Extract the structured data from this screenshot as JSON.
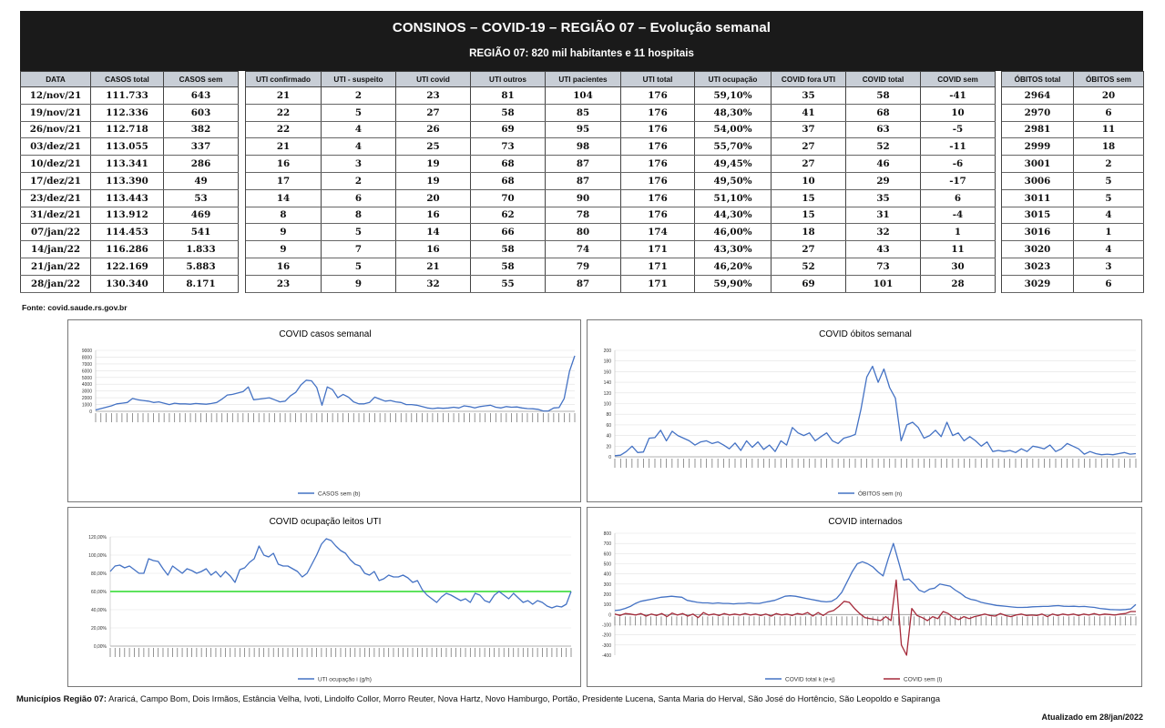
{
  "header": {
    "title": "CONSINOS – COVID-19 – REGIÃO 07 – Evolução semanal",
    "subtitle": "REGIÃO 07: 820 mil habitantes e 11 hospitais"
  },
  "table": {
    "columns": [
      "DATA",
      "CASOS total",
      "CASOS sem",
      "UTI confirmado",
      "UTI - suspeito",
      "UTI covid",
      "UTI outros",
      "UTI pacientes",
      "UTI total",
      "UTI ocupação",
      "COVID fora UTI",
      "COVID total",
      "COVID sem",
      "ÓBITOS total",
      "ÓBITOS sem"
    ],
    "rows": [
      [
        "12/nov/21",
        "111.733",
        "643",
        "21",
        "2",
        "23",
        "81",
        "104",
        "176",
        "59,10%",
        "35",
        "58",
        "-41",
        "2964",
        "20"
      ],
      [
        "19/nov/21",
        "112.336",
        "603",
        "22",
        "5",
        "27",
        "58",
        "85",
        "176",
        "48,30%",
        "41",
        "68",
        "10",
        "2970",
        "6"
      ],
      [
        "26/nov/21",
        "112.718",
        "382",
        "22",
        "4",
        "26",
        "69",
        "95",
        "176",
        "54,00%",
        "37",
        "63",
        "-5",
        "2981",
        "11"
      ],
      [
        "03/dez/21",
        "113.055",
        "337",
        "21",
        "4",
        "25",
        "73",
        "98",
        "176",
        "55,70%",
        "27",
        "52",
        "-11",
        "2999",
        "18"
      ],
      [
        "10/dez/21",
        "113.341",
        "286",
        "16",
        "3",
        "19",
        "68",
        "87",
        "176",
        "49,45%",
        "27",
        "46",
        "-6",
        "3001",
        "2"
      ],
      [
        "17/dez/21",
        "113.390",
        "49",
        "17",
        "2",
        "19",
        "68",
        "87",
        "176",
        "49,50%",
        "10",
        "29",
        "-17",
        "3006",
        "5"
      ],
      [
        "23/dez/21",
        "113.443",
        "53",
        "14",
        "6",
        "20",
        "70",
        "90",
        "176",
        "51,10%",
        "15",
        "35",
        "6",
        "3011",
        "5"
      ],
      [
        "31/dez/21",
        "113.912",
        "469",
        "8",
        "8",
        "16",
        "62",
        "78",
        "176",
        "44,30%",
        "15",
        "31",
        "-4",
        "3015",
        "4"
      ],
      [
        "07/jan/22",
        "114.453",
        "541",
        "9",
        "5",
        "14",
        "66",
        "80",
        "174",
        "46,00%",
        "18",
        "32",
        "1",
        "3016",
        "1"
      ],
      [
        "14/jan/22",
        "116.286",
        "1.833",
        "9",
        "7",
        "16",
        "58",
        "74",
        "171",
        "43,30%",
        "27",
        "43",
        "11",
        "3020",
        "4"
      ],
      [
        "21/jan/22",
        "122.169",
        "5.883",
        "16",
        "5",
        "21",
        "58",
        "79",
        "171",
        "46,20%",
        "52",
        "73",
        "30",
        "3023",
        "3"
      ],
      [
        "28/jan/22",
        "130.340",
        "8.171",
        "23",
        "9",
        "32",
        "55",
        "87",
        "171",
        "59,90%",
        "69",
        "101",
        "28",
        "3029",
        "6"
      ]
    ]
  },
  "source": "Fonte: covid.saude.rs.gov.br",
  "footer": {
    "municipios_label": "Municípios Região 07:",
    "municipios": " Araricá, Campo Bom, Dois Irmãos, Estância Velha, Ivoti, Lindolfo Collor, Morro Reuter, Nova Hartz, Novo Hamburgo, Portão, Presidente Lucena, Santa Maria do Herval,  São José do Hortêncio, São Leopoldo e Sapiranga",
    "updated": "Atualizado em 28/jan/2022"
  },
  "colors": {
    "blue": "#4472c4",
    "red": "#a52a3a",
    "green": "#5ee35e",
    "header_bg": "#1a1a1a",
    "th_bg": "#c8ced6"
  },
  "chart_data": [
    {
      "type": "line",
      "title": "COVID casos semanal",
      "ylim": [
        0,
        9000
      ],
      "yticks": [
        "0",
        "1000",
        "2000",
        "3000",
        "4000",
        "5000",
        "6000",
        "7000",
        "8000",
        "9000"
      ],
      "series": [
        {
          "name": "CASOS sem (b)",
          "values": [
            200,
            400,
            600,
            800,
            1100,
            1200,
            1300,
            1900,
            1700,
            1600,
            1500,
            1300,
            1400,
            1200,
            1000,
            1200,
            1100,
            1100,
            1050,
            1150,
            1100,
            1050,
            1150,
            1300,
            1800,
            2400,
            2500,
            2700,
            2900,
            3600,
            1700,
            1800,
            1900,
            2000,
            1700,
            1400,
            1500,
            2300,
            2800,
            3900,
            4600,
            4500,
            3500,
            900,
            3600,
            3200,
            2000,
            2500,
            2100,
            1400,
            1100,
            1100,
            1300,
            2100,
            1800,
            1500,
            1600,
            1400,
            1300,
            1000,
            1000,
            900,
            700,
            500,
            400,
            500,
            450,
            500,
            600,
            500,
            800,
            700,
            500,
            700,
            800,
            900,
            600,
            500,
            700,
            600,
            650,
            500,
            400,
            380,
            290,
            50,
            60,
            500,
            550,
            1900,
            5900,
            8200
          ]
        }
      ]
    },
    {
      "type": "line",
      "title": "COVID óbitos semanal",
      "ylim": [
        0,
        200
      ],
      "yticks": [
        "0",
        "20",
        "40",
        "60",
        "80",
        "100",
        "120",
        "140",
        "160",
        "180",
        "200"
      ],
      "series": [
        {
          "name": "ÓBITOS sem (n)",
          "values": [
            2,
            3,
            10,
            20,
            8,
            9,
            35,
            36,
            50,
            30,
            48,
            40,
            35,
            30,
            22,
            28,
            30,
            25,
            28,
            22,
            15,
            26,
            12,
            30,
            18,
            28,
            14,
            22,
            10,
            30,
            22,
            55,
            45,
            40,
            45,
            30,
            38,
            45,
            30,
            25,
            35,
            38,
            42,
            90,
            150,
            170,
            140,
            165,
            130,
            110,
            30,
            60,
            65,
            55,
            35,
            40,
            50,
            38,
            65,
            40,
            45,
            30,
            38,
            30,
            20,
            28,
            10,
            12,
            10,
            12,
            8,
            15,
            10,
            20,
            18,
            15,
            22,
            10,
            15,
            25,
            20,
            15,
            5,
            10,
            6,
            4,
            5,
            4,
            6,
            8,
            5,
            6
          ]
        }
      ]
    },
    {
      "type": "line",
      "title": "COVID ocupação leitos UTI",
      "ylim": [
        0,
        120
      ],
      "yticks": [
        "0,00%",
        "20,00%",
        "40,00%",
        "60,00%",
        "80,00%",
        "100,00%",
        "120,00%"
      ],
      "reference_line": 60,
      "series": [
        {
          "name": "UTI ocupação i (g/h)",
          "values": [
            82,
            88,
            89,
            86,
            88,
            84,
            80,
            80,
            96,
            94,
            93,
            85,
            78,
            88,
            84,
            80,
            85,
            83,
            80,
            82,
            85,
            78,
            82,
            76,
            82,
            77,
            70,
            84,
            86,
            92,
            96,
            110,
            100,
            98,
            102,
            90,
            88,
            88,
            85,
            82,
            76,
            80,
            90,
            100,
            112,
            118,
            116,
            110,
            105,
            102,
            95,
            90,
            88,
            80,
            78,
            82,
            72,
            74,
            78,
            76,
            76,
            78,
            75,
            70,
            72,
            62,
            56,
            52,
            48,
            54,
            58,
            56,
            53,
            50,
            52,
            48,
            58,
            56,
            50,
            48,
            56,
            60,
            56,
            52,
            58,
            53,
            48,
            50,
            46,
            50,
            48,
            44,
            42,
            44,
            43,
            46,
            60
          ]
        }
      ]
    },
    {
      "type": "line",
      "title": "COVID internados",
      "ylim": [
        -400,
        800
      ],
      "yticks": [
        "-400",
        "-300",
        "-200",
        "-100",
        "0",
        "100",
        "200",
        "300",
        "400",
        "500",
        "600",
        "700",
        "800"
      ],
      "series": [
        {
          "name": "COVID total k (e+j)",
          "values": [
            40,
            45,
            60,
            80,
            110,
            130,
            140,
            150,
            160,
            170,
            175,
            180,
            175,
            170,
            140,
            130,
            120,
            115,
            115,
            110,
            115,
            110,
            110,
            105,
            110,
            110,
            115,
            110,
            110,
            120,
            130,
            140,
            160,
            180,
            185,
            180,
            170,
            160,
            150,
            140,
            130,
            125,
            130,
            160,
            220,
            320,
            420,
            500,
            520,
            500,
            470,
            420,
            380,
            550,
            700,
            520,
            340,
            350,
            300,
            240,
            220,
            250,
            260,
            300,
            290,
            280,
            240,
            210,
            170,
            150,
            140,
            120,
            110,
            100,
            90,
            85,
            80,
            75,
            70,
            70,
            72,
            76,
            78,
            80,
            80,
            85,
            88,
            82,
            80,
            82,
            78,
            80,
            75,
            70,
            60,
            55,
            50,
            48,
            46,
            50,
            55,
            100
          ]
        },
        {
          "name": "COVID sem (l)",
          "values": [
            5,
            -10,
            10,
            5,
            -5,
            10,
            -15,
            5,
            -10,
            10,
            -20,
            15,
            -5,
            10,
            -15,
            5,
            -30,
            20,
            -5,
            5,
            -10,
            10,
            -5,
            5,
            -5,
            10,
            -5,
            5,
            -10,
            5,
            -15,
            10,
            -5,
            5,
            -10,
            10,
            0,
            20,
            -15,
            20,
            -10,
            25,
            40,
            80,
            130,
            120,
            60,
            10,
            -30,
            -40,
            -50,
            -60,
            -20,
            -60,
            340,
            -300,
            -400,
            60,
            -10,
            -30,
            -60,
            -20,
            -40,
            30,
            10,
            -30,
            -50,
            -20,
            -40,
            -20,
            -10,
            5,
            -10,
            -15,
            10,
            -10,
            -20,
            -5,
            5,
            -10,
            -5,
            -10,
            5,
            -20,
            5,
            -10,
            5,
            -5,
            5,
            -10,
            5,
            -5,
            10,
            -5,
            5,
            0,
            -5,
            5,
            10,
            30,
            30
          ]
        }
      ]
    }
  ]
}
